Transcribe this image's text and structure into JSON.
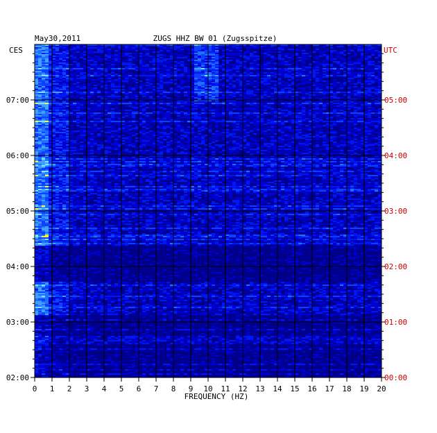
{
  "chart_data": {
    "type": "heatmap",
    "date": "May30,2011",
    "title": "ZUGS HHZ BW 01 (Zugsspitze)",
    "left_zone_label": "CES",
    "right_zone_label": "UTC",
    "xlabel": "FREQUENCY (HZ)",
    "xlim": [
      0,
      20
    ],
    "x_ticks": [
      0,
      1,
      2,
      3,
      4,
      5,
      6,
      7,
      8,
      9,
      10,
      11,
      12,
      13,
      14,
      15,
      16,
      17,
      18,
      19,
      20
    ],
    "left_time_range": [
      "02:00",
      "08:00"
    ],
    "left_time_ticks": [
      "02:00",
      "03:00",
      "04:00",
      "05:00",
      "06:00",
      "07:00"
    ],
    "right_time_ticks": [
      "00:00",
      "01:00",
      "02:00",
      "03:00",
      "04:00",
      "05:00"
    ],
    "colors": {
      "background": "#ffffff",
      "frame": "#000000",
      "utc_labels": "#cc0000",
      "spectrum_low": "#000070",
      "spectrum_high": "#ff0000"
    }
  }
}
